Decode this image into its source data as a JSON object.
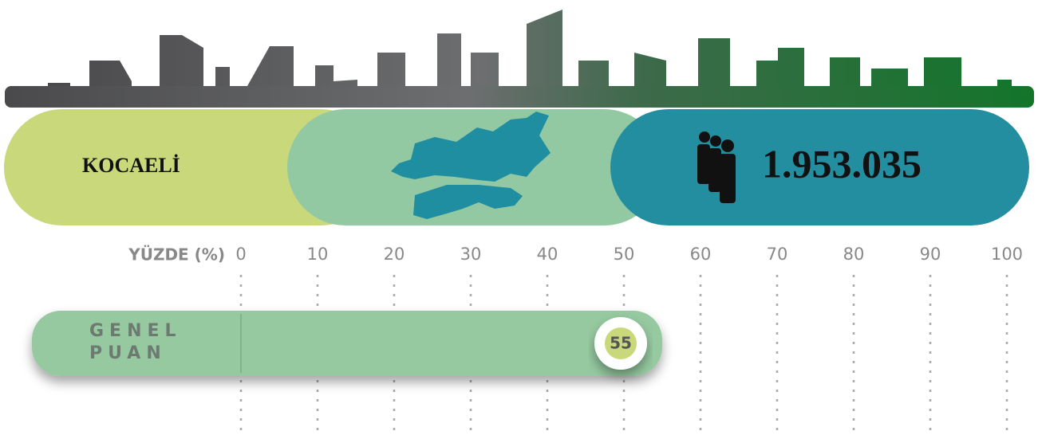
{
  "header": {
    "city": "KOCAELİ",
    "population": "1.953.035"
  },
  "chart_data": {
    "type": "bar",
    "xlabel": "YÜZDE (%)",
    "categories": [
      "GENEL PUAN"
    ],
    "values": [
      55
    ],
    "color": "#96c9a0",
    "xlim": [
      0,
      100
    ],
    "xticks": [
      0,
      10,
      20,
      30,
      40,
      50,
      60,
      70,
      80,
      90,
      100
    ],
    "grid": true
  }
}
